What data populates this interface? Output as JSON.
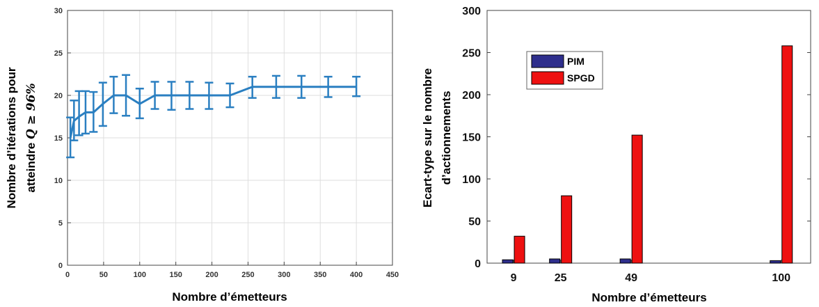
{
  "chart_data": [
    {
      "type": "line",
      "title": "",
      "xlabel": "Nombre d’émetteurs",
      "ylabel_line1": "Nombre d’itérations pour",
      "ylabel_line2_prefix": "atteindre ",
      "ylabel_line2_math": "Q ≥ 96%",
      "xlim": [
        0,
        450
      ],
      "ylim": [
        0,
        30
      ],
      "x_ticks": [
        0,
        50,
        100,
        150,
        200,
        250,
        300,
        350,
        400,
        450
      ],
      "y_ticks": [
        0,
        5,
        10,
        15,
        20,
        25,
        30
      ],
      "grid": true,
      "color": "#2a7fc1",
      "series": [
        {
          "x": [
            4,
            9,
            16,
            25,
            36,
            49,
            64,
            81,
            100,
            121,
            144,
            169,
            196,
            225,
            256,
            289,
            324,
            361,
            400
          ],
          "y": [
            15,
            17,
            17.5,
            18,
            18,
            19,
            20,
            20,
            19,
            20,
            20,
            20,
            20,
            20,
            21,
            21,
            21,
            21,
            21
          ],
          "err_low": [
            12.7,
            14.7,
            15.3,
            15.5,
            15.7,
            16.4,
            17.9,
            17.6,
            17.3,
            18.4,
            18.3,
            18.4,
            18.4,
            18.6,
            19.7,
            19.7,
            19.7,
            19.8,
            19.9
          ],
          "err_high": [
            17.4,
            19.4,
            20.5,
            20.5,
            20.4,
            21.5,
            22.2,
            22.4,
            20.8,
            21.6,
            21.6,
            21.6,
            21.5,
            21.4,
            22.2,
            22.3,
            22.3,
            22.2,
            22.2
          ]
        }
      ]
    },
    {
      "type": "bar",
      "title": "",
      "xlabel": "Nombre d’émetteurs",
      "ylabel_line1": "Ecart-type sur le nombre",
      "ylabel_line2": "d’actionnements",
      "ylim": [
        0,
        300
      ],
      "y_ticks": [
        0,
        50,
        100,
        150,
        200,
        250,
        300
      ],
      "x_domain": [
        0,
        110
      ],
      "categories": [
        "9",
        "25",
        "49",
        "100"
      ],
      "category_positions": [
        9,
        25,
        49,
        100
      ],
      "legend_position": "top-left",
      "series": [
        {
          "name": "PIM",
          "color": "#2e2e8c",
          "values": [
            4,
            5,
            5,
            3
          ]
        },
        {
          "name": "SPGD",
          "color": "#ee1111",
          "values": [
            32,
            80,
            152,
            258
          ]
        }
      ]
    }
  ]
}
